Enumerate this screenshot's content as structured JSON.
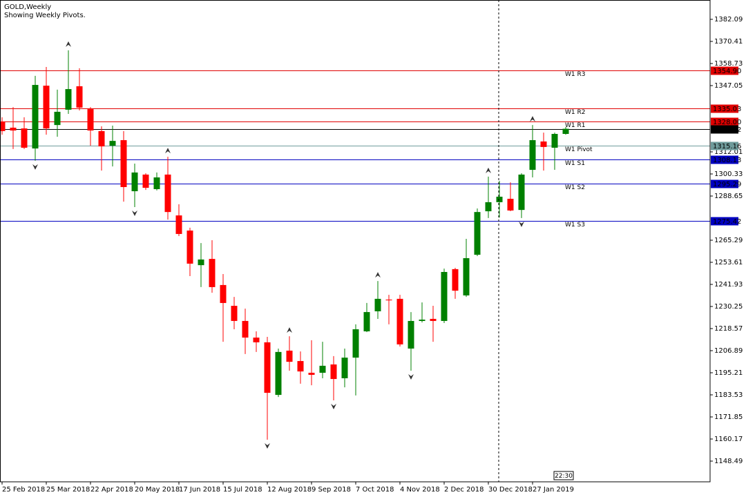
{
  "chart_data": {
    "type": "candlestick",
    "title": "GOLD,Weekly",
    "subtitle": "Showing Weekly Pivots.",
    "categories": [
      "25 Feb 2018",
      null,
      null,
      null,
      "25 Mar 2018",
      null,
      null,
      null,
      "22 Apr 2018",
      null,
      null,
      null,
      "20 May 2018",
      null,
      null,
      null,
      "17 Jun 2018",
      null,
      null,
      null,
      "15 Jul 2018",
      null,
      null,
      null,
      "12 Aug 2018",
      null,
      null,
      null,
      "9 Sep 2018",
      null,
      null,
      null,
      "7 Oct 2018",
      null,
      null,
      null,
      "4 Nov 2018",
      null,
      null,
      null,
      "2 Dec 2018",
      null,
      null,
      null,
      "30 Dec 2018",
      null,
      null,
      null,
      "27 Jan 2019",
      null,
      null,
      null
    ],
    "open": [
      1328.1,
      1324.8,
      1324.4,
      1313.8,
      1347.0,
      1326.2,
      1334.3,
      1346.7,
      1334.6,
      1323.0,
      1315.3,
      1318.2,
      1291.2,
      1300.0,
      1292.3,
      1300.0,
      1278.4,
      1270.4,
      1252.1,
      1255.4,
      1241.6,
      1230.6,
      1222.6,
      1213.8,
      1211.3,
      1183.5,
      1206.9,
      1201.4,
      1195.2,
      1195.2,
      1199.6,
      1192.3,
      1203.2,
      1217.1,
      1227.7,
      1233.9,
      1234.3,
      1208.0,
      1222.6,
      1223.7,
      1222.6,
      1250.0,
      1236.1,
      1257.6,
      1280.6,
      1285.4,
      1287.2,
      1281.3,
      1302.5,
      1317.5,
      1314.2,
      1321.5
    ],
    "high": [
      1330.3,
      1335.7,
      1330.3,
      1352.2,
      1356.9,
      1344.9,
      1365.7,
      1356.2,
      1335.7,
      1325.5,
      1325.9,
      1323.0,
      1305.8,
      1300.7,
      1301.1,
      1309.4,
      1284.3,
      1271.9,
      1263.8,
      1265.3,
      1247.4,
      1235.3,
      1229.1,
      1217.1,
      1214.2,
      1208.0,
      1214.5,
      1206.5,
      1212.4,
      1211.6,
      1204.0,
      1208.0,
      1220.8,
      1232.1,
      1243.7,
      1236.4,
      1236.4,
      1227.3,
      1232.4,
      1230.6,
      1250.3,
      1250.7,
      1266.0,
      1282.1,
      1298.9,
      1296.7,
      1295.9,
      1300.7,
      1326.2,
      1322.2,
      1322.2,
      1325.2
    ],
    "low": [
      1321.1,
      1313.5,
      1313.5,
      1307.3,
      1321.1,
      1320.0,
      1332.1,
      1333.9,
      1315.3,
      1302.1,
      1304.3,
      1285.7,
      1282.8,
      1291.9,
      1291.6,
      1276.2,
      1267.5,
      1246.3,
      1240.5,
      1237.5,
      1211.6,
      1218.2,
      1205.1,
      1206.2,
      1159.8,
      1182.4,
      1196.3,
      1189.4,
      1188.6,
      1192.3,
      1180.6,
      1187.5,
      1183.2,
      1216.7,
      1223.7,
      1220.8,
      1209.1,
      1196.3,
      1221.8,
      1211.6,
      1221.5,
      1234.3,
      1235.3,
      1256.9,
      1277.0,
      1277.3,
      1280.6,
      1277.0,
      1298.5,
      1302.1,
      1302.5,
      1321.1
    ],
    "close": [
      1323.0,
      1323.3,
      1314.2,
      1347.4,
      1324.4,
      1333.2,
      1345.2,
      1335.4,
      1323.3,
      1314.9,
      1317.8,
      1293.4,
      1301.1,
      1293.0,
      1298.5,
      1280.2,
      1268.6,
      1252.9,
      1255.1,
      1240.5,
      1232.1,
      1222.6,
      1213.8,
      1211.3,
      1184.6,
      1206.2,
      1201.0,
      1195.9,
      1194.1,
      1198.9,
      1191.9,
      1203.2,
      1218.2,
      1227.3,
      1234.3,
      1233.5,
      1210.2,
      1222.6,
      1223.3,
      1222.6,
      1248.5,
      1238.6,
      1255.8,
      1280.2,
      1285.4,
      1288.3,
      1281.0,
      1300.0,
      1318.2,
      1314.6,
      1321.5,
      1324.22
    ],
    "up_color": "#008000",
    "down_color": "#ff0000",
    "ylim": [
      1137.54,
      1392.31
    ],
    "yticks": [
      1382.09,
      1370.41,
      1358.73,
      1347.05,
      1312.01,
      1300.33,
      1288.65,
      1265.29,
      1253.61,
      1241.93,
      1230.25,
      1218.57,
      1206.89,
      1195.21,
      1183.53,
      1171.85,
      1160.17,
      1148.49
    ],
    "pivots": [
      {
        "name": "W1 R3",
        "value": 1354.9,
        "value_label": "1354.90",
        "color": "#e00000"
      },
      {
        "name": "W1 R2",
        "value": 1335.03,
        "color": "#e00000"
      },
      {
        "name": "W1 R1",
        "value": 1328.0,
        "value_label": "1328.00",
        "color": "#e00000"
      },
      {
        "name": "W1 Pivot",
        "value": 1315.16,
        "color": "#6f9b9b"
      },
      {
        "name": "W1 S1",
        "value": 1308.13,
        "color": "#0000c0"
      },
      {
        "name": "W1 S2",
        "value": 1295.29,
        "color": "#0000c0"
      },
      {
        "name": "W1 S3",
        "value": 1275.42,
        "color": "#0000c0"
      }
    ],
    "current_price": 1324.22,
    "fractals_up": [
      6,
      15,
      26,
      34,
      44,
      48
    ],
    "fractals_down": [
      3,
      12,
      24,
      30,
      37,
      47
    ],
    "time_label": "22:30"
  }
}
